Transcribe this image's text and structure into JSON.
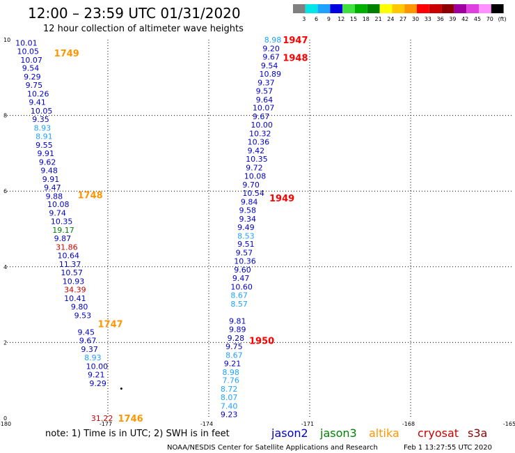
{
  "header": {
    "title": "12:00 – 23:59 UTC 01/31/2020",
    "subtitle": "12 hour collection of altimeter wave heights"
  },
  "colorbar": {
    "labels": [
      "3",
      "6",
      "9",
      "12",
      "15",
      "18",
      "21",
      "24",
      "27",
      "30",
      "33",
      "36",
      "39",
      "42",
      "45",
      "70",
      "(ft)"
    ],
    "colors": [
      "#808080",
      "#00e5e5",
      "#1fa2ff",
      "#0000e0",
      "#40e040",
      "#00b000",
      "#008000",
      "#ffff00",
      "#ffc800",
      "#ff9600",
      "#ff0000",
      "#c80000",
      "#8c0000",
      "#a000a0",
      "#e040e0",
      "#ff90ff",
      "#000000"
    ]
  },
  "footer": {
    "note": "note:  1) Time is in UTC; 2) SWH is in feet",
    "satellites": [
      {
        "name": "jason2",
        "color": "#0000cc"
      },
      {
        "name": "jason3",
        "color": "#008000"
      },
      {
        "name": "altika",
        "color": "#ff9600"
      },
      {
        "name": "cryosat",
        "color": "#cc0000"
      },
      {
        "name": "s3a",
        "color": "#8c0000"
      }
    ],
    "credit": "NOAA/NESDIS Center for Satellite Applications and Research",
    "timestamp": "Feb  1 13:27:55 UTC 2020"
  },
  "chart_data": {
    "type": "scatter",
    "title": "12:00 – 23:59 UTC 01/31/2020",
    "subtitle": "12 hour collection of altimeter wave heights",
    "xlim": [
      -180,
      -165
    ],
    "ylim": [
      0,
      10
    ],
    "grid": true,
    "x_ticks": [
      "-180",
      "-177",
      "-174",
      "-171",
      "-168",
      "-165"
    ],
    "x_tick_values": [
      -180,
      -177,
      -174,
      -171,
      -168,
      -165
    ],
    "y_ticks": [
      "0",
      "2",
      "4",
      "6",
      "8",
      "10"
    ],
    "y_tick_values": [
      0,
      2,
      4,
      6,
      8,
      10
    ],
    "pass_labels": [
      {
        "text": "1749",
        "x": -178.6,
        "y": 9.65,
        "color": "#ff9600"
      },
      {
        "text": "1748",
        "x": -177.9,
        "y": 5.9,
        "color": "#ff9600"
      },
      {
        "text": "1747",
        "x": -177.3,
        "y": 2.5,
        "color": "#ff9600"
      },
      {
        "text": "1746",
        "x": -176.7,
        "y": 0.0,
        "color": "#ff9600"
      },
      {
        "text": "1947",
        "x": -171.8,
        "y": 10.0,
        "color": "#ff0000"
      },
      {
        "text": "1948",
        "x": -171.8,
        "y": 9.53,
        "color": "#ff0000"
      },
      {
        "text": "1949",
        "x": -172.2,
        "y": 5.82,
        "color": "#ff0000"
      },
      {
        "text": "1950",
        "x": -172.8,
        "y": 2.05,
        "color": "#ff0000"
      }
    ],
    "marker": {
      "x": -176.6,
      "y": 0.78
    },
    "tracks": [
      {
        "color": "#0000cc",
        "points": [
          {
            "label": "10.01",
            "x": -179.75,
            "y": 9.92
          },
          {
            "label": "10.05",
            "x": -179.7,
            "y": 9.7
          },
          {
            "label": "10.07",
            "x": -179.6,
            "y": 9.47
          },
          {
            "label": "9.54",
            "x": -179.55,
            "y": 9.25
          },
          {
            "label": "9.29",
            "x": -179.5,
            "y": 9.02
          },
          {
            "label": "9.75",
            "x": -179.45,
            "y": 8.8
          },
          {
            "label": "10.26",
            "x": -179.4,
            "y": 8.57
          },
          {
            "label": "9.41",
            "x": -179.35,
            "y": 8.35
          },
          {
            "label": "10.05",
            "x": -179.3,
            "y": 8.12
          },
          {
            "label": "9.35",
            "x": -179.25,
            "y": 7.9
          },
          {
            "label": "9.55",
            "x": -179.15,
            "y": 7.22
          },
          {
            "label": "9.91",
            "x": -179.1,
            "y": 7.0
          },
          {
            "label": "9.62",
            "x": -179.05,
            "y": 6.77
          },
          {
            "label": "9.48",
            "x": -179.0,
            "y": 6.55
          },
          {
            "label": "9.91",
            "x": -178.95,
            "y": 6.32
          },
          {
            "label": "9.47",
            "x": -178.9,
            "y": 6.1
          },
          {
            "label": "9.88",
            "x": -178.85,
            "y": 5.87
          },
          {
            "label": "10.08",
            "x": -178.8,
            "y": 5.65
          },
          {
            "label": "9.74",
            "x": -178.75,
            "y": 5.42
          },
          {
            "label": "10.35",
            "x": -178.7,
            "y": 5.2
          },
          {
            "label": "9.87",
            "x": -178.6,
            "y": 4.75
          },
          {
            "label": "10.64",
            "x": -178.5,
            "y": 4.3
          },
          {
            "label": "11.37",
            "x": -178.45,
            "y": 4.07
          },
          {
            "label": "10.57",
            "x": -178.4,
            "y": 3.85
          },
          {
            "label": "10.93",
            "x": -178.35,
            "y": 3.62
          },
          {
            "label": "10.41",
            "x": -178.3,
            "y": 3.17
          },
          {
            "label": "9.80",
            "x": -178.1,
            "y": 2.95
          },
          {
            "label": "9.53",
            "x": -178.0,
            "y": 2.72
          },
          {
            "label": "9.45",
            "x": -177.9,
            "y": 2.27
          },
          {
            "label": "9.67",
            "x": -177.85,
            "y": 2.05
          },
          {
            "label": "9.37",
            "x": -177.8,
            "y": 1.82
          },
          {
            "label": "10.00",
            "x": -177.65,
            "y": 1.37
          },
          {
            "label": "9.21",
            "x": -177.6,
            "y": 1.15
          },
          {
            "label": "9.29",
            "x": -177.55,
            "y": 0.92
          }
        ]
      },
      {
        "color": "#1fa2ff",
        "points": [
          {
            "label": "8.93",
            "x": -179.2,
            "y": 7.67
          },
          {
            "label": "8.91",
            "x": -179.15,
            "y": 7.45
          },
          {
            "label": "8.93",
            "x": -177.7,
            "y": 1.6
          }
        ]
      },
      {
        "color": "#008000",
        "points": [
          {
            "label": "19.17",
            "x": -178.65,
            "y": 4.97
          }
        ]
      },
      {
        "color": "#cc0000",
        "points": [
          {
            "label": "31.86",
            "x": -178.55,
            "y": 4.52
          },
          {
            "label": "34.39",
            "x": -178.3,
            "y": 3.4
          },
          {
            "label": "31.22",
            "x": -177.5,
            "y": 0.0
          }
        ]
      },
      {
        "color": "#0000cc",
        "points": [
          {
            "label": "9.20",
            "x": -172.4,
            "y": 9.77
          },
          {
            "label": "9.67",
            "x": -172.4,
            "y": 9.55
          },
          {
            "label": "9.54",
            "x": -172.45,
            "y": 9.32
          },
          {
            "label": "10.89",
            "x": -172.5,
            "y": 9.1
          },
          {
            "label": "9.37",
            "x": -172.55,
            "y": 8.87
          },
          {
            "label": "9.57",
            "x": -172.6,
            "y": 8.65
          },
          {
            "label": "9.64",
            "x": -172.6,
            "y": 8.42
          },
          {
            "label": "10.07",
            "x": -172.7,
            "y": 8.2
          },
          {
            "label": "9.67",
            "x": -172.7,
            "y": 7.97
          },
          {
            "label": "10.00",
            "x": -172.75,
            "y": 7.75
          },
          {
            "label": "10.32",
            "x": -172.8,
            "y": 7.52
          },
          {
            "label": "10.36",
            "x": -172.85,
            "y": 7.3
          },
          {
            "label": "9.42",
            "x": -172.85,
            "y": 7.07
          },
          {
            "label": "10.35",
            "x": -172.9,
            "y": 6.85
          },
          {
            "label": "9.72",
            "x": -172.9,
            "y": 6.62
          },
          {
            "label": "10.08",
            "x": -172.95,
            "y": 6.4
          },
          {
            "label": "9.70",
            "x": -173.0,
            "y": 6.17
          },
          {
            "label": "10.54",
            "x": -173.0,
            "y": 5.95
          },
          {
            "label": "9.84",
            "x": -173.05,
            "y": 5.72
          },
          {
            "label": "9.58",
            "x": -173.1,
            "y": 5.5
          },
          {
            "label": "9.34",
            "x": -173.1,
            "y": 5.27
          },
          {
            "label": "9.49",
            "x": -173.15,
            "y": 5.05
          },
          {
            "label": "9.51",
            "x": -173.15,
            "y": 4.6
          },
          {
            "label": "9.57",
            "x": -173.2,
            "y": 4.37
          },
          {
            "label": "10.36",
            "x": -173.25,
            "y": 4.15
          },
          {
            "label": "9.60",
            "x": -173.25,
            "y": 3.92
          },
          {
            "label": "9.47",
            "x": -173.3,
            "y": 3.7
          },
          {
            "label": "10.60",
            "x": -173.35,
            "y": 3.47
          },
          {
            "label": "9.81",
            "x": -173.4,
            "y": 2.57
          },
          {
            "label": "9.89",
            "x": -173.4,
            "y": 2.35
          },
          {
            "label": "9.28",
            "x": -173.45,
            "y": 2.12
          },
          {
            "label": "9.75",
            "x": -173.5,
            "y": 1.9
          },
          {
            "label": "9.21",
            "x": -173.55,
            "y": 1.45
          },
          {
            "label": "9.23",
            "x": -173.65,
            "y": 0.1
          }
        ]
      },
      {
        "color": "#1fa2ff",
        "points": [
          {
            "label": "8.98",
            "x": -172.35,
            "y": 10.0
          },
          {
            "label": "8.53",
            "x": -173.15,
            "y": 4.82
          },
          {
            "label": "8.67",
            "x": -173.35,
            "y": 3.25
          },
          {
            "label": "8.57",
            "x": -173.35,
            "y": 3.02
          },
          {
            "label": "8.67",
            "x": -173.5,
            "y": 1.67
          },
          {
            "label": "8.98",
            "x": -173.6,
            "y": 1.22
          },
          {
            "label": "7.76",
            "x": -173.6,
            "y": 1.0
          },
          {
            "label": "8.72",
            "x": -173.65,
            "y": 0.77
          },
          {
            "label": "8.07",
            "x": -173.65,
            "y": 0.55
          },
          {
            "label": "7.40",
            "x": -173.65,
            "y": 0.32
          }
        ]
      }
    ]
  }
}
